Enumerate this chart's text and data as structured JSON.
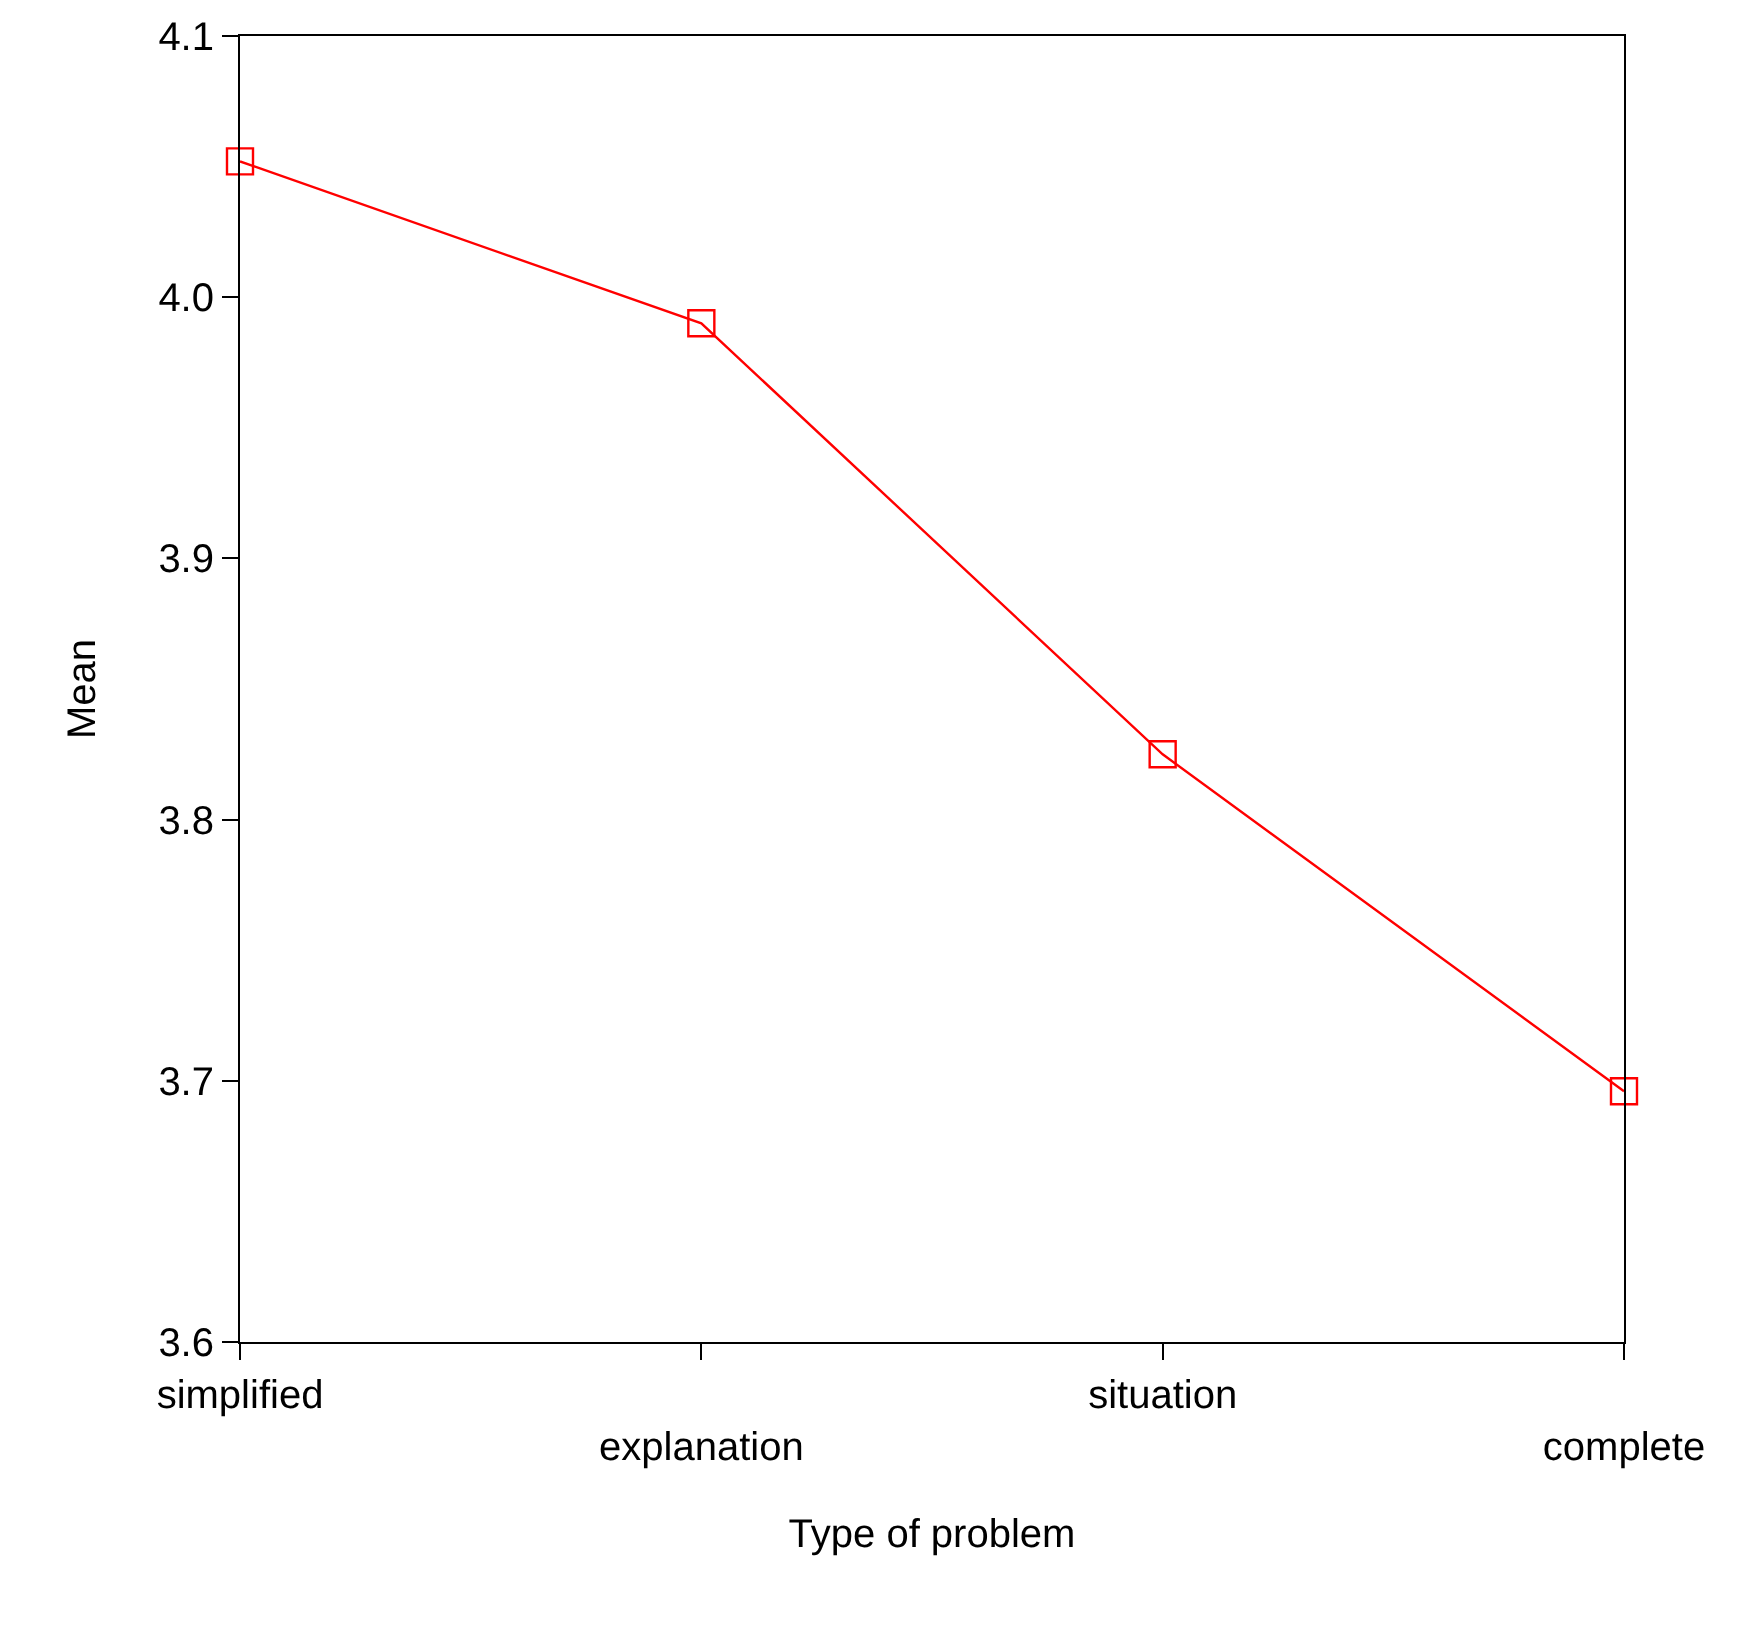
{
  "chart_data": {
    "type": "line",
    "xlabel": "Type of problem",
    "ylabel": "Mean",
    "categories": [
      "simplified",
      "explanation",
      "situation",
      "complete"
    ],
    "series": [
      {
        "color": "#ff0000",
        "values": [
          4.052,
          3.99,
          3.825,
          3.696
        ]
      }
    ],
    "ylim": [
      3.6,
      4.1
    ],
    "yticks": [
      3.6,
      3.7,
      3.8,
      3.9,
      {
        "value": 4,
        "label": "4.0"
      },
      4.1
    ],
    "grid": false,
    "marker": "square",
    "line_style": "solid"
  }
}
